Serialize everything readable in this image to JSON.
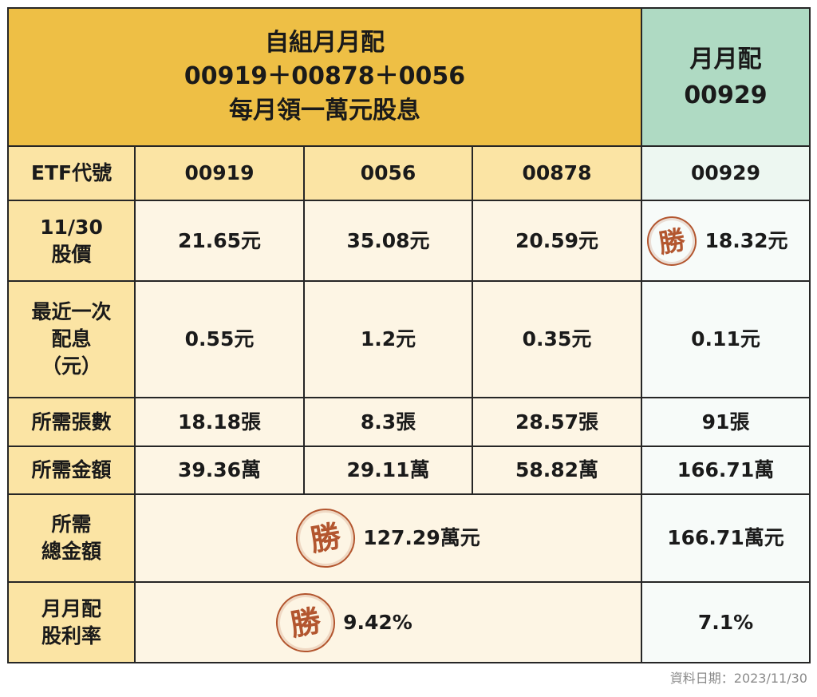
{
  "header": {
    "left_lines": [
      "自組月月配",
      "00919＋00878＋0056",
      "每月領一萬元股息"
    ],
    "right_lines": [
      "月月配",
      "00929"
    ]
  },
  "rows": {
    "etf_code": {
      "label": "ETF代號",
      "values": [
        "00919",
        "0056",
        "00878",
        "00929"
      ]
    },
    "price": {
      "label_lines": [
        "11/30",
        "股價"
      ],
      "values": [
        "21.65元",
        "35.08元",
        "20.59元",
        "18.32元"
      ]
    },
    "dividend": {
      "label_lines": [
        "最近一次",
        "配息",
        "（元）"
      ],
      "values": [
        "0.55元",
        "1.2元",
        "0.35元",
        "0.11元"
      ]
    },
    "lots": {
      "label": "所需張數",
      "values": [
        "18.18張",
        "8.3張",
        "28.57張",
        "91張"
      ]
    },
    "amount": {
      "label": "所需金額",
      "values": [
        "39.36萬",
        "29.11萬",
        "58.82萬",
        "166.71萬"
      ]
    },
    "total": {
      "label_lines": [
        "所需",
        "總金額"
      ],
      "combined": "127.29萬元",
      "single": "166.71萬元"
    },
    "yield": {
      "label_lines": [
        "月月配",
        "股利率"
      ],
      "combined": "9.42%",
      "single": "7.1%"
    }
  },
  "seal_text": "勝",
  "source_note": "資料日期：2023/11/30",
  "colors": {
    "header_yellow": "#eebf45",
    "header_green": "#afdac3",
    "label_yellow": "#fbe4a4",
    "cell_yellow": "#fdf5e4",
    "cell_green": "#f7fbf9",
    "seal_red": "#b3562f"
  }
}
